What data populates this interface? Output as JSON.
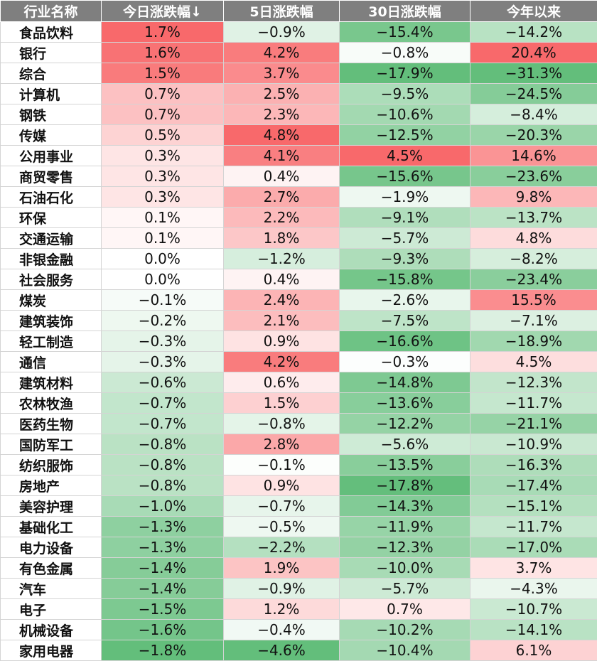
{
  "chart_data": {
    "type": "table",
    "columns": [
      "行业名称",
      "今日涨跌幅↓",
      "5日涨跌幅",
      "30日涨跌幅",
      "今年以来"
    ],
    "colors": {
      "positive": "#f8696b",
      "negative": "#63be7b",
      "neutral": "#ffffff",
      "header_bg": "#7f7f7f"
    },
    "rows": [
      {
        "name": "食品饮料",
        "today": "1.7%",
        "d5": "−0.9%",
        "d30": "−15.4%",
        "ytd": "−14.2%"
      },
      {
        "name": "银行",
        "today": "1.6%",
        "d5": "4.2%",
        "d30": "−0.8%",
        "ytd": "20.4%"
      },
      {
        "name": "综合",
        "today": "1.5%",
        "d5": "3.7%",
        "d30": "−17.9%",
        "ytd": "−31.3%"
      },
      {
        "name": "计算机",
        "today": "0.7%",
        "d5": "2.5%",
        "d30": "−9.5%",
        "ytd": "−24.5%"
      },
      {
        "name": "钢铁",
        "today": "0.7%",
        "d5": "2.3%",
        "d30": "−10.6%",
        "ytd": "−8.4%"
      },
      {
        "name": "传媒",
        "today": "0.5%",
        "d5": "4.8%",
        "d30": "−12.5%",
        "ytd": "−20.3%"
      },
      {
        "name": "公用事业",
        "today": "0.3%",
        "d5": "4.1%",
        "d30": "4.5%",
        "ytd": "14.6%"
      },
      {
        "name": "商贸零售",
        "today": "0.3%",
        "d5": "0.4%",
        "d30": "−15.6%",
        "ytd": "−23.6%"
      },
      {
        "name": "石油石化",
        "today": "0.3%",
        "d5": "2.7%",
        "d30": "−1.9%",
        "ytd": "9.8%"
      },
      {
        "name": "环保",
        "today": "0.1%",
        "d5": "2.2%",
        "d30": "−9.1%",
        "ytd": "−13.7%"
      },
      {
        "name": "交通运输",
        "today": "0.1%",
        "d5": "1.8%",
        "d30": "−5.7%",
        "ytd": "4.8%"
      },
      {
        "name": "非银金融",
        "today": "0.0%",
        "d5": "−1.2%",
        "d30": "−9.3%",
        "ytd": "−8.2%"
      },
      {
        "name": "社会服务",
        "today": "0.0%",
        "d5": "0.4%",
        "d30": "−15.8%",
        "ytd": "−23.4%"
      },
      {
        "name": "煤炭",
        "today": "−0.1%",
        "d5": "2.4%",
        "d30": "−2.6%",
        "ytd": "15.5%"
      },
      {
        "name": "建筑装饰",
        "today": "−0.2%",
        "d5": "2.1%",
        "d30": "−7.5%",
        "ytd": "−7.1%"
      },
      {
        "name": "轻工制造",
        "today": "−0.3%",
        "d5": "0.9%",
        "d30": "−16.6%",
        "ytd": "−18.9%"
      },
      {
        "name": "通信",
        "today": "−0.3%",
        "d5": "4.2%",
        "d30": "−0.3%",
        "ytd": "4.5%"
      },
      {
        "name": "建筑材料",
        "today": "−0.6%",
        "d5": "0.6%",
        "d30": "−14.8%",
        "ytd": "−12.3%"
      },
      {
        "name": "农林牧渔",
        "today": "−0.7%",
        "d5": "1.5%",
        "d30": "−13.6%",
        "ytd": "−11.7%"
      },
      {
        "name": "医药生物",
        "today": "−0.7%",
        "d5": "−0.8%",
        "d30": "−12.2%",
        "ytd": "−21.1%"
      },
      {
        "name": "国防军工",
        "today": "−0.8%",
        "d5": "2.8%",
        "d30": "−5.6%",
        "ytd": "−10.9%"
      },
      {
        "name": "纺织服饰",
        "today": "−0.8%",
        "d5": "−0.1%",
        "d30": "−13.5%",
        "ytd": "−16.3%"
      },
      {
        "name": "房地产",
        "today": "−0.8%",
        "d5": "0.9%",
        "d30": "−17.8%",
        "ytd": "−17.4%"
      },
      {
        "name": "美容护理",
        "today": "−1.0%",
        "d5": "−0.7%",
        "d30": "−14.3%",
        "ytd": "−15.1%"
      },
      {
        "name": "基础化工",
        "today": "−1.3%",
        "d5": "−0.5%",
        "d30": "−11.9%",
        "ytd": "−11.7%"
      },
      {
        "name": "电力设备",
        "today": "−1.3%",
        "d5": "−2.2%",
        "d30": "−12.3%",
        "ytd": "−17.0%"
      },
      {
        "name": "有色金属",
        "today": "−1.4%",
        "d5": "1.9%",
        "d30": "−10.0%",
        "ytd": "3.7%"
      },
      {
        "name": "汽车",
        "today": "−1.4%",
        "d5": "−0.9%",
        "d30": "−5.7%",
        "ytd": "−4.3%"
      },
      {
        "name": "电子",
        "today": "−1.5%",
        "d5": "1.2%",
        "d30": "0.7%",
        "ytd": "−10.7%"
      },
      {
        "name": "机械设备",
        "today": "−1.6%",
        "d5": "−0.4%",
        "d30": "−10.2%",
        "ytd": "−14.1%"
      },
      {
        "name": "家用电器",
        "today": "−1.8%",
        "d5": "−4.6%",
        "d30": "−10.4%",
        "ytd": "6.1%"
      }
    ]
  }
}
